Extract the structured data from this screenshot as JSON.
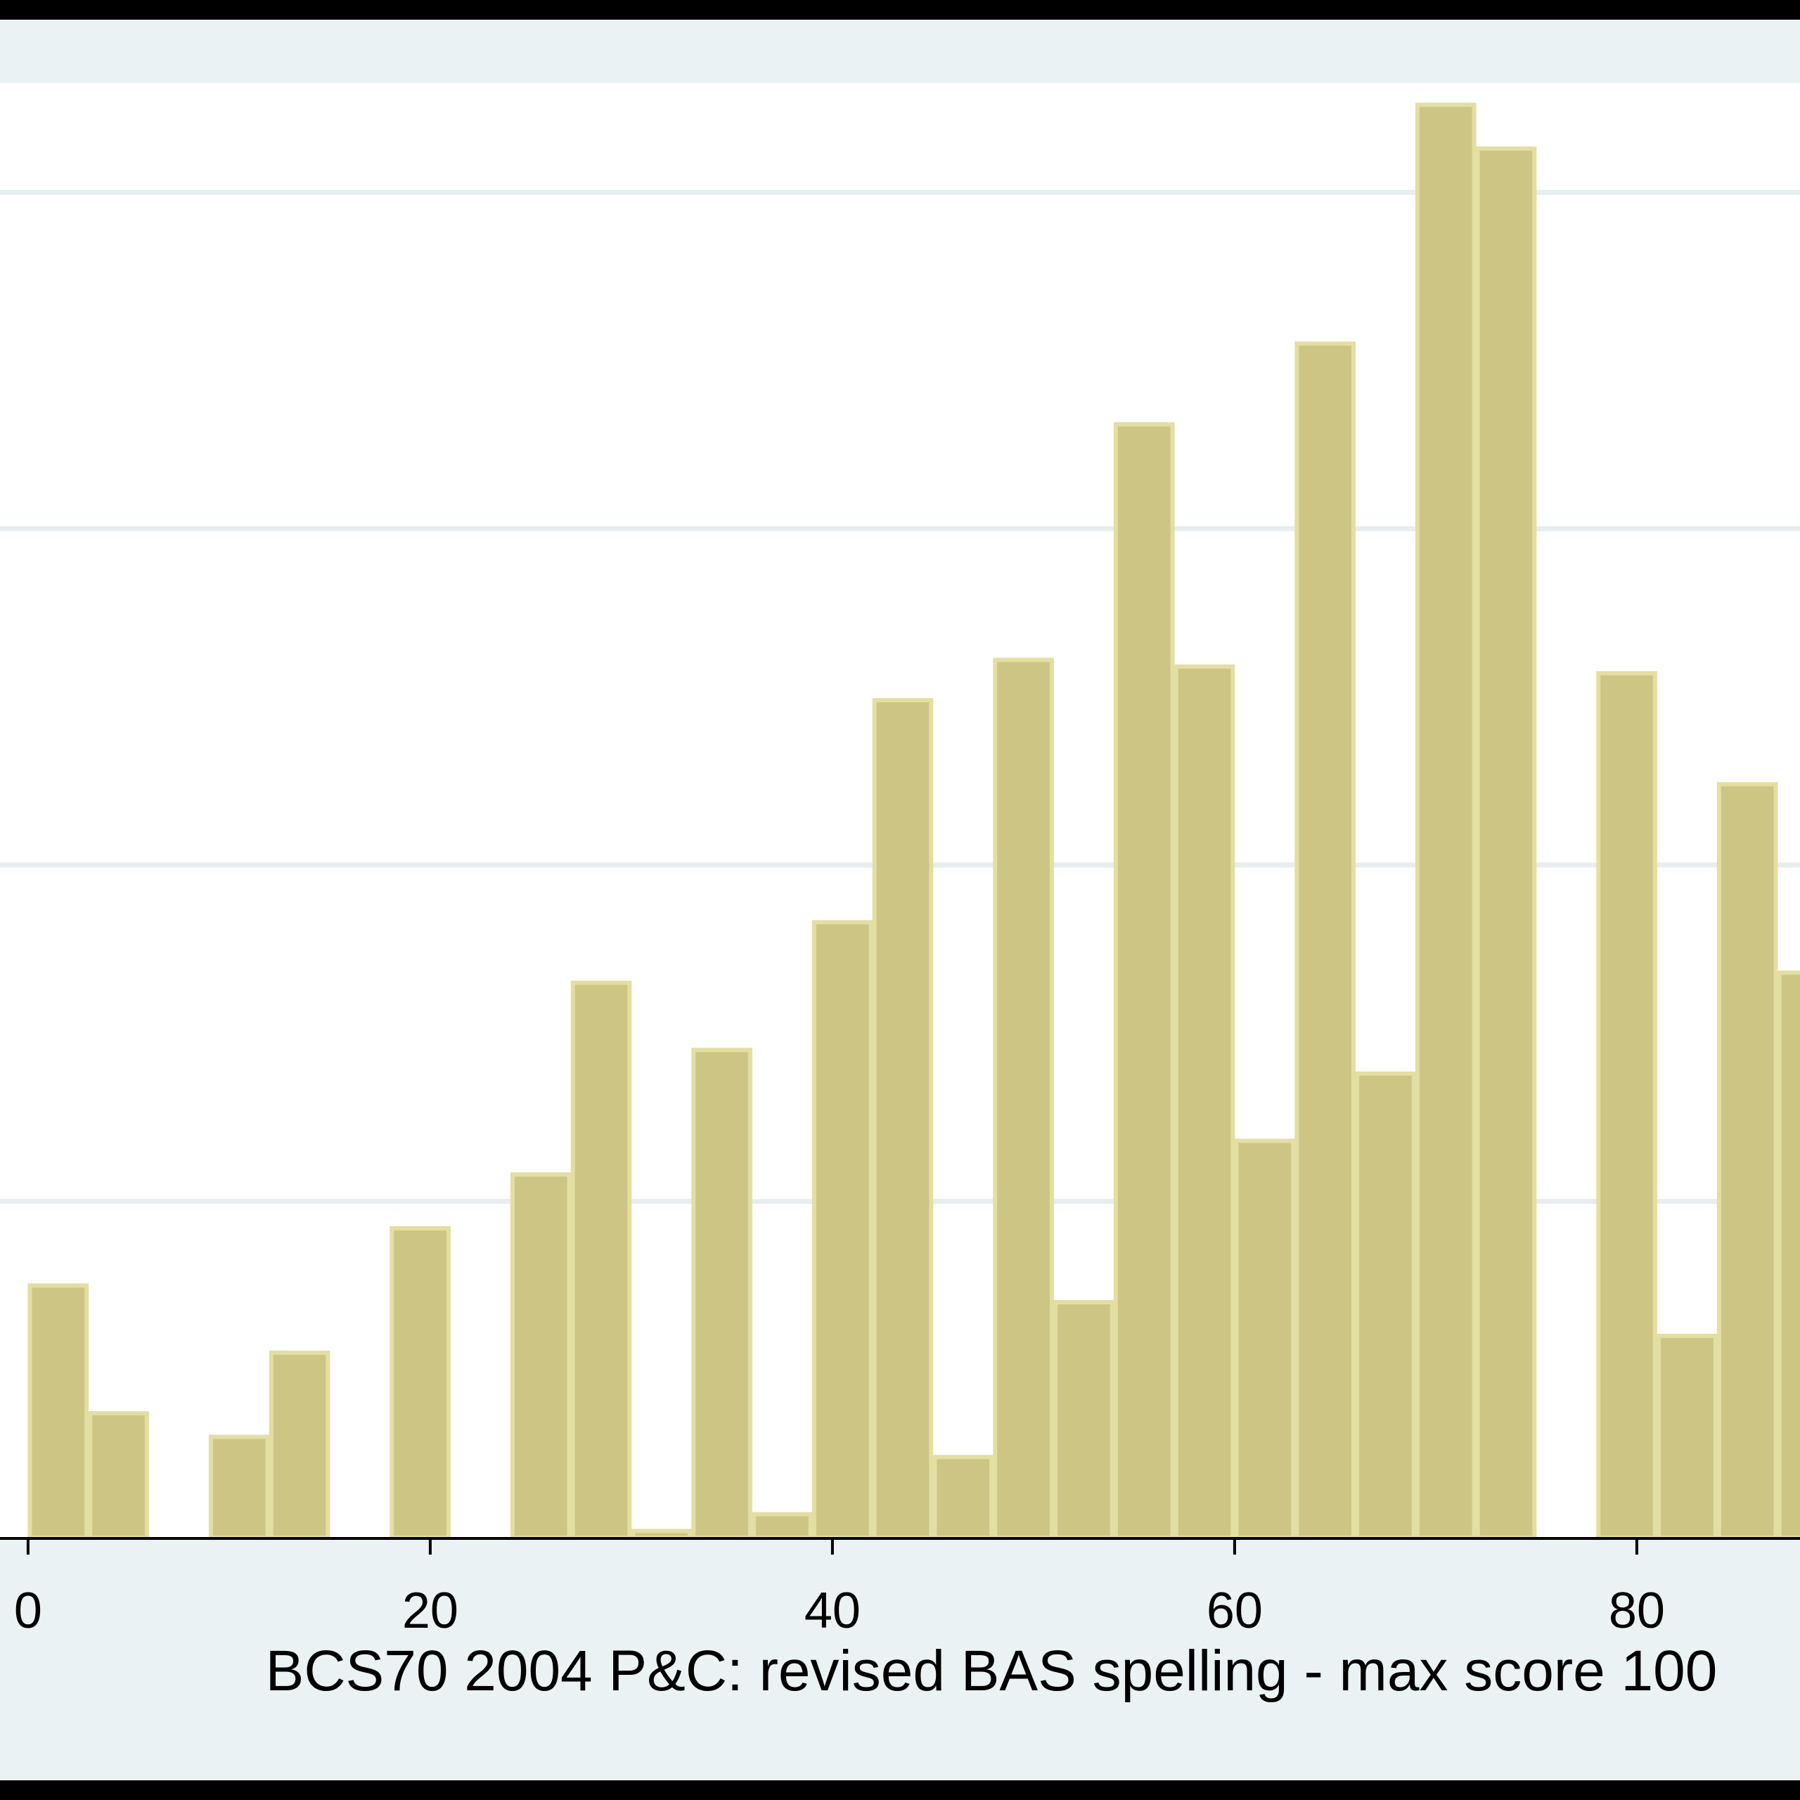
{
  "chart_data": {
    "type": "bar",
    "xlabel": "BCS70 2004 P&C: revised BAS spelling - max score 100",
    "ylabel": "",
    "xlim": [
      -1.5,
      90
    ],
    "ylim": [
      0,
      0.04325
    ],
    "x_ticks": [
      {
        "value": 0,
        "label": "0"
      },
      {
        "value": 20,
        "label": "20"
      },
      {
        "value": 40,
        "label": "40"
      },
      {
        "value": 60,
        "label": "60"
      },
      {
        "value": 80,
        "label": "80"
      }
    ],
    "y_gridlines": [
      0.01,
      0.02,
      0.03,
      0.04
    ],
    "bin_width": 3.03,
    "x": [
      1.5,
      4.5,
      7.5,
      10.5,
      13.5,
      16.5,
      19.5,
      22.5,
      25.5,
      28.5,
      31.5,
      34.5,
      37.5,
      40.5,
      43.5,
      46.5,
      49.5,
      52.5,
      55.5,
      58.5,
      61.5,
      64.5,
      67.5,
      70.5,
      73.5,
      76.5,
      79.5,
      82.5,
      85.5,
      88.5
    ],
    "values": [
      0.0075,
      0.0037,
      0,
      0.003,
      0.0055,
      0,
      0.0092,
      0,
      0.0108,
      0.0165,
      0.0002,
      0.0145,
      0.0007,
      0.0183,
      0.0249,
      0.0024,
      0.0261,
      0.007,
      0.0331,
      0.0259,
      0.0118,
      0.0355,
      0.0138,
      0.0426,
      0.0413,
      0,
      0.0257,
      0.006,
      0.0224,
      0.0168
    ],
    "colors": {
      "bar_fill": "#cdc584",
      "bar_edge": "#e3dea2",
      "plot_background": "#ffffff",
      "outer_background": "#eaf2f3",
      "gridline": "#e6eeef",
      "axis": "#000000"
    },
    "grid": true
  }
}
